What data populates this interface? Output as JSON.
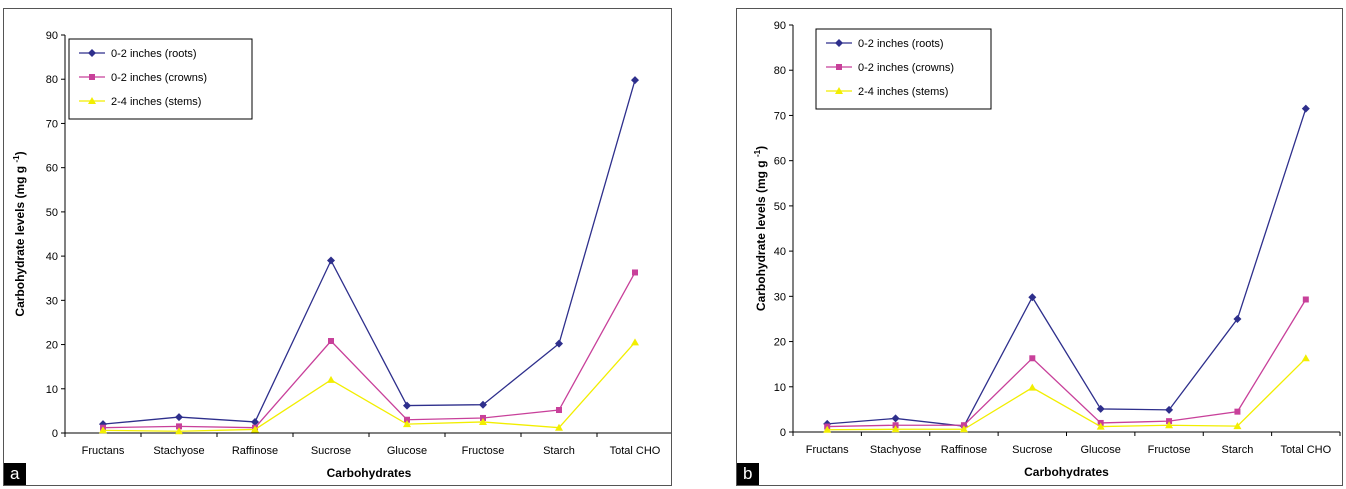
{
  "colors": {
    "roots": "#2e2f8c",
    "crowns": "#c8409a",
    "stems": "#f2ee00",
    "axis": "#000000"
  },
  "chart_data": [
    {
      "panel_label": "a",
      "type": "line",
      "categories": [
        "Fructans",
        "Stachyose",
        "Raffinose",
        "Sucrose",
        "Glucose",
        "Fructose",
        "Starch",
        "Total CHO"
      ],
      "xlabel": "Carbohydrates",
      "ylabel": "Carbohydrate levels (mg g",
      "ylabel_sup": "-1",
      "ylabel_close": ")",
      "ylim": [
        0,
        90
      ],
      "yticks": [
        0,
        10,
        20,
        30,
        40,
        50,
        60,
        70,
        80,
        90
      ],
      "grid": false,
      "legend_position": "top-left",
      "series": [
        {
          "name": "0-2 inches (roots)",
          "marker": "diamond",
          "color": "#2e2f8c",
          "values": [
            2.0,
            3.6,
            2.5,
            39.0,
            6.2,
            6.4,
            20.2,
            79.8
          ]
        },
        {
          "name": "0-2 inches (crowns)",
          "marker": "square",
          "color": "#c8409a",
          "values": [
            1.2,
            1.5,
            1.2,
            20.8,
            3.0,
            3.4,
            5.2,
            36.3
          ]
        },
        {
          "name": "2-4 inches (stems)",
          "marker": "triangle",
          "color": "#f2ee00",
          "values": [
            0.6,
            0.4,
            0.8,
            12.0,
            2.0,
            2.5,
            1.2,
            20.5
          ]
        }
      ]
    },
    {
      "panel_label": "b",
      "type": "line",
      "categories": [
        "Fructans",
        "Stachyose",
        "Raffinose",
        "Sucrose",
        "Glucose",
        "Fructose",
        "Starch",
        "Total CHO"
      ],
      "xlabel": "Carbohydrates",
      "ylabel": "Carbohydrate levels (mg g",
      "ylabel_sup": "-1",
      "ylabel_close": ")",
      "ylim": [
        0,
        90
      ],
      "yticks": [
        0,
        10,
        20,
        30,
        40,
        50,
        60,
        70,
        80,
        90
      ],
      "grid": false,
      "legend_position": "top-left",
      "series": [
        {
          "name": "0-2 inches (roots)",
          "marker": "diamond",
          "color": "#2e2f8c",
          "values": [
            1.8,
            3.0,
            1.3,
            29.8,
            5.1,
            4.9,
            25.0,
            71.5
          ]
        },
        {
          "name": "0-2 inches (crowns)",
          "marker": "square",
          "color": "#c8409a",
          "values": [
            1.2,
            1.5,
            1.5,
            16.3,
            2.0,
            2.4,
            4.5,
            29.3
          ]
        },
        {
          "name": "2-4 inches (stems)",
          "marker": "triangle",
          "color": "#f2ee00",
          "values": [
            0.5,
            0.6,
            0.6,
            9.8,
            1.2,
            1.5,
            1.3,
            16.3
          ]
        }
      ]
    }
  ]
}
